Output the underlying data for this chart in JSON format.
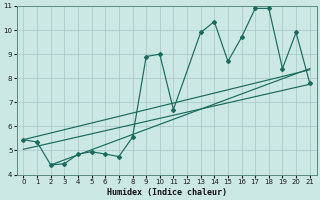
{
  "xlabel": "Humidex (Indice chaleur)",
  "bg_color": "#cce8e4",
  "grid_color": "#aaccca",
  "line_color": "#1a6b5e",
  "xlim": [
    -0.5,
    21.5
  ],
  "ylim": [
    4,
    11
  ],
  "xticks": [
    0,
    1,
    2,
    3,
    4,
    5,
    6,
    7,
    8,
    9,
    10,
    11,
    12,
    13,
    14,
    15,
    16,
    17,
    18,
    19,
    20,
    21
  ],
  "yticks": [
    4,
    5,
    6,
    7,
    8,
    9,
    10,
    11
  ],
  "series_x": [
    0,
    1,
    2,
    3,
    4,
    5,
    6,
    7,
    8,
    9,
    10,
    11,
    13,
    14,
    15,
    16,
    17,
    18,
    19,
    20,
    21
  ],
  "series_y": [
    5.45,
    5.35,
    4.4,
    4.45,
    4.85,
    4.95,
    4.85,
    4.75,
    5.55,
    8.9,
    9.0,
    6.7,
    9.9,
    10.35,
    8.7,
    9.7,
    10.9,
    10.9,
    8.4,
    9.9,
    7.8
  ],
  "line1_x": [
    0,
    21
  ],
  "line1_y": [
    5.45,
    8.35
  ],
  "line2_x": [
    0,
    21
  ],
  "line2_y": [
    5.05,
    7.75
  ],
  "line3_x": [
    2,
    21
  ],
  "line3_y": [
    4.4,
    8.4
  ]
}
